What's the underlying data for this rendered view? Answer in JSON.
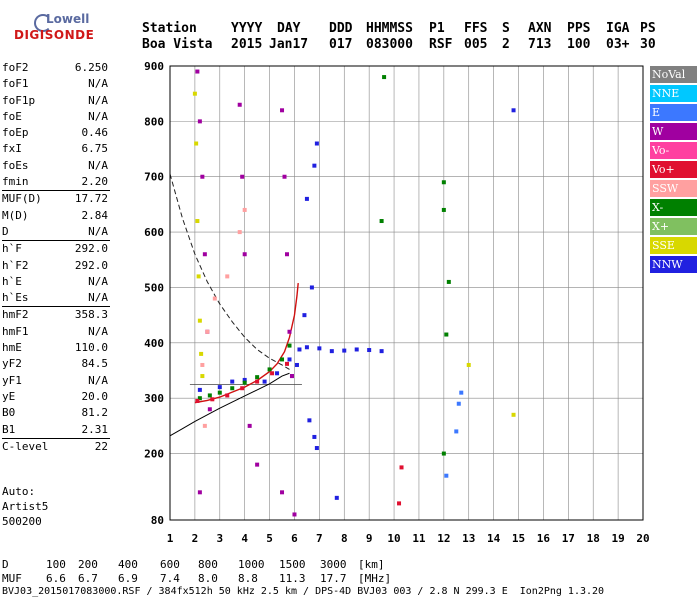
{
  "logo": {
    "top": "Lowell",
    "bottom": "DIGISONDE"
  },
  "header": {
    "labels": [
      "Station",
      "YYYY",
      "DAY",
      "DDD",
      "HHMMSS",
      "P1",
      "FFS",
      "S",
      "AXN",
      "PPS",
      "IGA",
      "PS"
    ],
    "values": [
      "Boa Vista",
      "2015",
      "Jan17",
      "017",
      "083000",
      "RSF",
      "005",
      "2",
      "713",
      "100",
      "03+",
      "30"
    ]
  },
  "params_group1": [
    {
      "label": "foF2",
      "value": "6.250"
    },
    {
      "label": "foF1",
      "value": "N/A"
    },
    {
      "label": "foF1p",
      "value": "N/A"
    },
    {
      "label": "foE",
      "value": "N/A"
    },
    {
      "label": "foEp",
      "value": "0.46"
    },
    {
      "label": "fxI",
      "value": "6.75"
    },
    {
      "label": "foEs",
      "value": "N/A"
    },
    {
      "label": "fmin",
      "value": "2.20"
    }
  ],
  "params_group2": [
    {
      "label": "MUF(D)",
      "value": "17.72"
    },
    {
      "label": "M(D)",
      "value": "2.84"
    },
    {
      "label": "D",
      "value": "N/A"
    }
  ],
  "params_group3": [
    {
      "label": "h`F",
      "value": "292.0"
    },
    {
      "label": "h`F2",
      "value": "292.0"
    },
    {
      "label": "h`E",
      "value": "N/A"
    },
    {
      "label": "h`Es",
      "value": "N/A"
    }
  ],
  "params_group4": [
    {
      "label": "hmF2",
      "value": "358.3"
    },
    {
      "label": "hmF1",
      "value": "N/A"
    },
    {
      "label": "hmE",
      "value": "110.0"
    },
    {
      "label": "yF2",
      "value": "84.5"
    },
    {
      "label": "yF1",
      "value": "N/A"
    },
    {
      "label": "yE",
      "value": "20.0"
    },
    {
      "label": "B0",
      "value": "81.2"
    },
    {
      "label": "B1",
      "value": "2.31"
    }
  ],
  "params_group5": [
    {
      "label": "C-level",
      "value": "22"
    }
  ],
  "auto": {
    "line1": "Auto:",
    "line2": "Artist5",
    "line3": "500200"
  },
  "legend": [
    {
      "name": "NoVal",
      "color": "#808080"
    },
    {
      "name": "NNE",
      "color": "#00c8ff"
    },
    {
      "name": "E",
      "color": "#3c78ff"
    },
    {
      "name": "W",
      "color": "#a000a0"
    },
    {
      "name": "Vo-",
      "color": "#ff40a0"
    },
    {
      "name": "Vo+",
      "color": "#e01030"
    },
    {
      "name": "SSW",
      "color": "#ffa0a0"
    },
    {
      "name": "X-",
      "color": "#008000"
    },
    {
      "name": "X+",
      "color": "#80c060"
    },
    {
      "name": "SSE",
      "color": "#d8d800"
    },
    {
      "name": "NNW",
      "color": "#2020e0"
    }
  ],
  "footer": {
    "d_label": "D",
    "d_values": [
      "100",
      "200",
      "400",
      "600",
      "800",
      "1000",
      "1500",
      "3000"
    ],
    "d_unit": "[km]",
    "muf_label": "MUF",
    "muf_values": [
      "6.6",
      "6.7",
      "6.9",
      "7.4",
      "8.0",
      "8.8",
      "11.3",
      "17.7"
    ],
    "muf_unit": "[MHz]",
    "line3": "BVJ03_2015017083000.RSF / 384fx512h 50 kHz 2.5 km / DPS-4D BVJ03 003 / 2.8 N 299.3 E  Ion2Png 1.3.20"
  },
  "chart_data": {
    "type": "scatter",
    "xlim": [
      1,
      20
    ],
    "ylim": [
      80,
      900
    ],
    "x_ticks": [
      1,
      2,
      3,
      4,
      5,
      6,
      7,
      8,
      9,
      10,
      11,
      12,
      13,
      14,
      15,
      16,
      17,
      18,
      19,
      20
    ],
    "y_ticks": [
      80,
      200,
      300,
      400,
      500,
      600,
      700,
      800,
      900
    ],
    "grid": true,
    "series": [
      {
        "name": "NNW",
        "points": [
          [
            4.8,
            330
          ],
          [
            5.3,
            345
          ],
          [
            5.8,
            370
          ],
          [
            6.2,
            388
          ],
          [
            6.5,
            392
          ],
          [
            7,
            390
          ],
          [
            7.5,
            385
          ],
          [
            8,
            386
          ],
          [
            8.5,
            388
          ],
          [
            9,
            387
          ],
          [
            9.5,
            385
          ],
          [
            6.5,
            660
          ],
          [
            6.8,
            720
          ],
          [
            6.9,
            760
          ],
          [
            6.4,
            450
          ],
          [
            6.7,
            500
          ],
          [
            6.6,
            260
          ],
          [
            6.8,
            230
          ],
          [
            6.9,
            210
          ],
          [
            7.7,
            120
          ],
          [
            2.2,
            315
          ],
          [
            3,
            320
          ],
          [
            3.5,
            330
          ],
          [
            4,
            333
          ],
          [
            14.8,
            820
          ],
          [
            5.9,
            340
          ],
          [
            6.1,
            360
          ]
        ]
      },
      {
        "name": "W",
        "points": [
          [
            2.1,
            890
          ],
          [
            2.2,
            800
          ],
          [
            2.3,
            700
          ],
          [
            2.4,
            560
          ],
          [
            2.5,
            420
          ],
          [
            2.6,
            280
          ],
          [
            3.8,
            830
          ],
          [
            3.9,
            700
          ],
          [
            4,
            560
          ],
          [
            5.5,
            820
          ],
          [
            5.6,
            700
          ],
          [
            5.7,
            560
          ],
          [
            5.8,
            420
          ],
          [
            5.9,
            340
          ],
          [
            4.2,
            250
          ],
          [
            4.5,
            180
          ],
          [
            2.2,
            130
          ],
          [
            5.5,
            130
          ],
          [
            6,
            90
          ]
        ]
      },
      {
        "name": "X-",
        "points": [
          [
            2.2,
            300
          ],
          [
            2.6,
            305
          ],
          [
            3,
            310
          ],
          [
            3.5,
            318
          ],
          [
            4,
            328
          ],
          [
            4.5,
            338
          ],
          [
            5,
            352
          ],
          [
            5.5,
            370
          ],
          [
            5.8,
            395
          ],
          [
            12,
            690
          ],
          [
            12,
            640
          ],
          [
            12.2,
            510
          ],
          [
            12.1,
            415
          ],
          [
            12,
            200
          ],
          [
            9.6,
            880
          ],
          [
            9.5,
            620
          ]
        ]
      },
      {
        "name": "SSE",
        "points": [
          [
            2,
            850
          ],
          [
            2.05,
            760
          ],
          [
            2.1,
            620
          ],
          [
            2.15,
            520
          ],
          [
            2.2,
            440
          ],
          [
            2.25,
            380
          ],
          [
            2.3,
            340
          ],
          [
            14.8,
            270
          ],
          [
            13,
            360
          ]
        ]
      },
      {
        "name": "E",
        "points": [
          [
            12.7,
            310
          ],
          [
            12.6,
            290
          ],
          [
            12.5,
            240
          ],
          [
            12.1,
            160
          ]
        ]
      },
      {
        "name": "Vo+",
        "points": [
          [
            2.1,
            295
          ],
          [
            2.7,
            298
          ],
          [
            3.3,
            305
          ],
          [
            3.9,
            318
          ],
          [
            4.5,
            330
          ],
          [
            5.1,
            345
          ],
          [
            5.7,
            362
          ],
          [
            10.3,
            175
          ],
          [
            10.2,
            110
          ]
        ]
      },
      {
        "name": "SSW",
        "points": [
          [
            2.3,
            360
          ],
          [
            2.5,
            420
          ],
          [
            2.8,
            480
          ],
          [
            3.3,
            520
          ],
          [
            3.8,
            600
          ],
          [
            4,
            640
          ],
          [
            2.4,
            250
          ]
        ]
      }
    ],
    "dashed_curve": [
      [
        1,
        705
      ],
      [
        1.5,
        625
      ],
      [
        2,
        560
      ],
      [
        2.5,
        510
      ],
      [
        3,
        470
      ],
      [
        3.5,
        438
      ],
      [
        4,
        410
      ],
      [
        4.5,
        388
      ],
      [
        5,
        372
      ],
      [
        5.5,
        360
      ],
      [
        5.8,
        352
      ]
    ],
    "solid_curve": [
      [
        1,
        232
      ],
      [
        1.5,
        245
      ],
      [
        2,
        258
      ],
      [
        2.5,
        270
      ],
      [
        3,
        282
      ],
      [
        3.5,
        293
      ],
      [
        4,
        304
      ],
      [
        4.5,
        315
      ],
      [
        5,
        326
      ],
      [
        5.5,
        340
      ],
      [
        5.8,
        345
      ]
    ],
    "profile_curve": [
      [
        2,
        292
      ],
      [
        2.5,
        296
      ],
      [
        3,
        302
      ],
      [
        3.5,
        311
      ],
      [
        4,
        320
      ],
      [
        4.5,
        332
      ],
      [
        5,
        348
      ],
      [
        5.3,
        362
      ],
      [
        5.6,
        384
      ],
      [
        5.8,
        410
      ],
      [
        6,
        450
      ],
      [
        6.1,
        485
      ],
      [
        6.15,
        508
      ]
    ],
    "hline_value": 325
  }
}
